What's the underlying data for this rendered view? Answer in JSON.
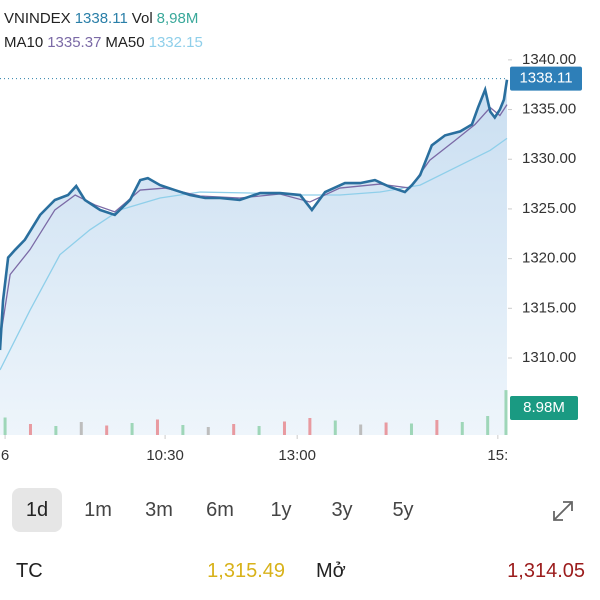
{
  "header": {
    "price": "1338.11",
    "ma10": "1335.37",
    "ma50": "1332.15"
  },
  "chart_data": {
    "type": "line",
    "xlim": [
      0,
      100
    ],
    "xticks": [
      {
        "value": 1,
        "label": "6"
      },
      {
        "value": 32.5,
        "label": "10:30"
      },
      {
        "value": 58.5,
        "label": "13:00"
      },
      {
        "value": 98,
        "label": "15:"
      }
    ],
    "ylim": [
      1302.25,
      1342
    ],
    "yticks": [
      {
        "value": 1310,
        "label": "1310.00"
      },
      {
        "value": 1315,
        "label": "1315.00"
      },
      {
        "value": 1320,
        "label": "1320.00"
      },
      {
        "value": 1325,
        "label": "1325.00"
      },
      {
        "value": 1330,
        "label": "1330.00"
      },
      {
        "value": 1335,
        "label": "1335.00"
      },
      {
        "value": 1340,
        "label": "1340.00"
      }
    ],
    "last_value": 1338.11,
    "series": [
      {
        "name": "VNINDEX",
        "color": "#2a6f9e",
        "x": [
          0,
          0.6,
          1.6,
          3,
          4.9,
          7.9,
          10.8,
          13.4,
          15,
          16.7,
          19.7,
          22.6,
          25.6,
          27.6,
          29.1,
          31.5,
          34.4,
          37.4,
          40.4,
          43.3,
          47.2,
          51.2,
          55.1,
          59.1,
          61.4,
          64,
          67.9,
          70.9,
          73.8,
          76.8,
          79.7,
          81.1,
          82.7,
          85,
          87.6,
          90.6,
          92.9,
          94.1,
          95.5,
          96.5,
          97.4,
          98.4,
          99.2,
          99.8
        ],
        "values": [
          1310.8,
          1315.8,
          1320.1,
          1320.9,
          1321.9,
          1324.4,
          1325.9,
          1326.4,
          1327.3,
          1325.9,
          1324.9,
          1324.4,
          1325.9,
          1327.9,
          1328.1,
          1327.4,
          1326.9,
          1326.4,
          1326.1,
          1326.1,
          1325.9,
          1326.6,
          1326.6,
          1326.4,
          1324.9,
          1326.7,
          1327.6,
          1327.6,
          1327.9,
          1327.2,
          1326.7,
          1327.4,
          1328.4,
          1331.4,
          1332.4,
          1332.8,
          1333.5,
          1335.2,
          1337,
          1334.8,
          1334.2,
          1335,
          1336,
          1338
        ]
      },
      {
        "name": "MA10",
        "color": "#7b6aa6",
        "x": [
          0,
          2,
          5.9,
          10.8,
          14.8,
          18.7,
          22.6,
          27.6,
          32.5,
          39.4,
          47.2,
          55.1,
          61,
          66.9,
          74.8,
          80.7,
          84.6,
          89.6,
          93.5,
          96.5,
          98.4,
          99.8
        ],
        "values": [
          1311.8,
          1318.4,
          1320.9,
          1324.9,
          1326.4,
          1325.4,
          1324.7,
          1326.9,
          1327.1,
          1326.3,
          1326.1,
          1326.5,
          1325.7,
          1327.1,
          1327.5,
          1327.1,
          1329.9,
          1331.9,
          1333.5,
          1335.2,
          1334.4,
          1335.5
        ]
      },
      {
        "name": "MA50",
        "color": "#8fcfea",
        "x": [
          0,
          5.9,
          11.8,
          17.7,
          23.6,
          31.5,
          39.4,
          49.2,
          59.1,
          66.9,
          74.8,
          82.7,
          90.6,
          96.5,
          99.8
        ],
        "values": [
          1308.8,
          1314.8,
          1320.4,
          1322.9,
          1324.9,
          1326.1,
          1326.7,
          1326.6,
          1326.4,
          1326.4,
          1326.7,
          1327.4,
          1329.4,
          1330.9,
          1332.1
        ]
      }
    ],
    "volume": {
      "name": "Vol",
      "label": "8,98M",
      "tag": "8.98M",
      "ylim": [
        0,
        9
      ],
      "x": [
        1,
        6,
        11,
        16,
        21,
        26,
        31,
        36,
        41,
        46,
        51,
        56,
        61,
        66,
        71,
        76,
        81,
        86,
        91,
        96,
        99.6
      ],
      "values": [
        3.5,
        2.2,
        1.8,
        2.6,
        1.9,
        2.4,
        3.1,
        2.0,
        1.6,
        2.2,
        1.8,
        2.7,
        3.4,
        2.9,
        2.1,
        2.5,
        2.3,
        3.0,
        2.6,
        3.8,
        8.98
      ],
      "colors": [
        "#9ed6b8",
        "#e89aa0",
        "#9ed6b8",
        "#bdbdbd",
        "#e89aa0",
        "#9ed6b8",
        "#e89aa0",
        "#9ed6b8",
        "#bdbdbd",
        "#e89aa0",
        "#9ed6b8",
        "#e89aa0",
        "#e89aa0",
        "#9ed6b8",
        "#bdbdbd",
        "#e89aa0",
        "#9ed6b8",
        "#e89aa0",
        "#9ed6b8",
        "#9ed6b8",
        "#9ed6b8"
      ]
    }
  },
  "ui": {
    "ranges": [
      "1d",
      "1m",
      "3m",
      "6m",
      "1y",
      "3y",
      "5y"
    ],
    "selected": 0,
    "stats": [
      {
        "label": "TC",
        "value": "1,315.49",
        "color": "#d8b21a"
      },
      {
        "label": "Mở",
        "value": "1,314.05",
        "color": "#9b1c1c"
      }
    ]
  }
}
